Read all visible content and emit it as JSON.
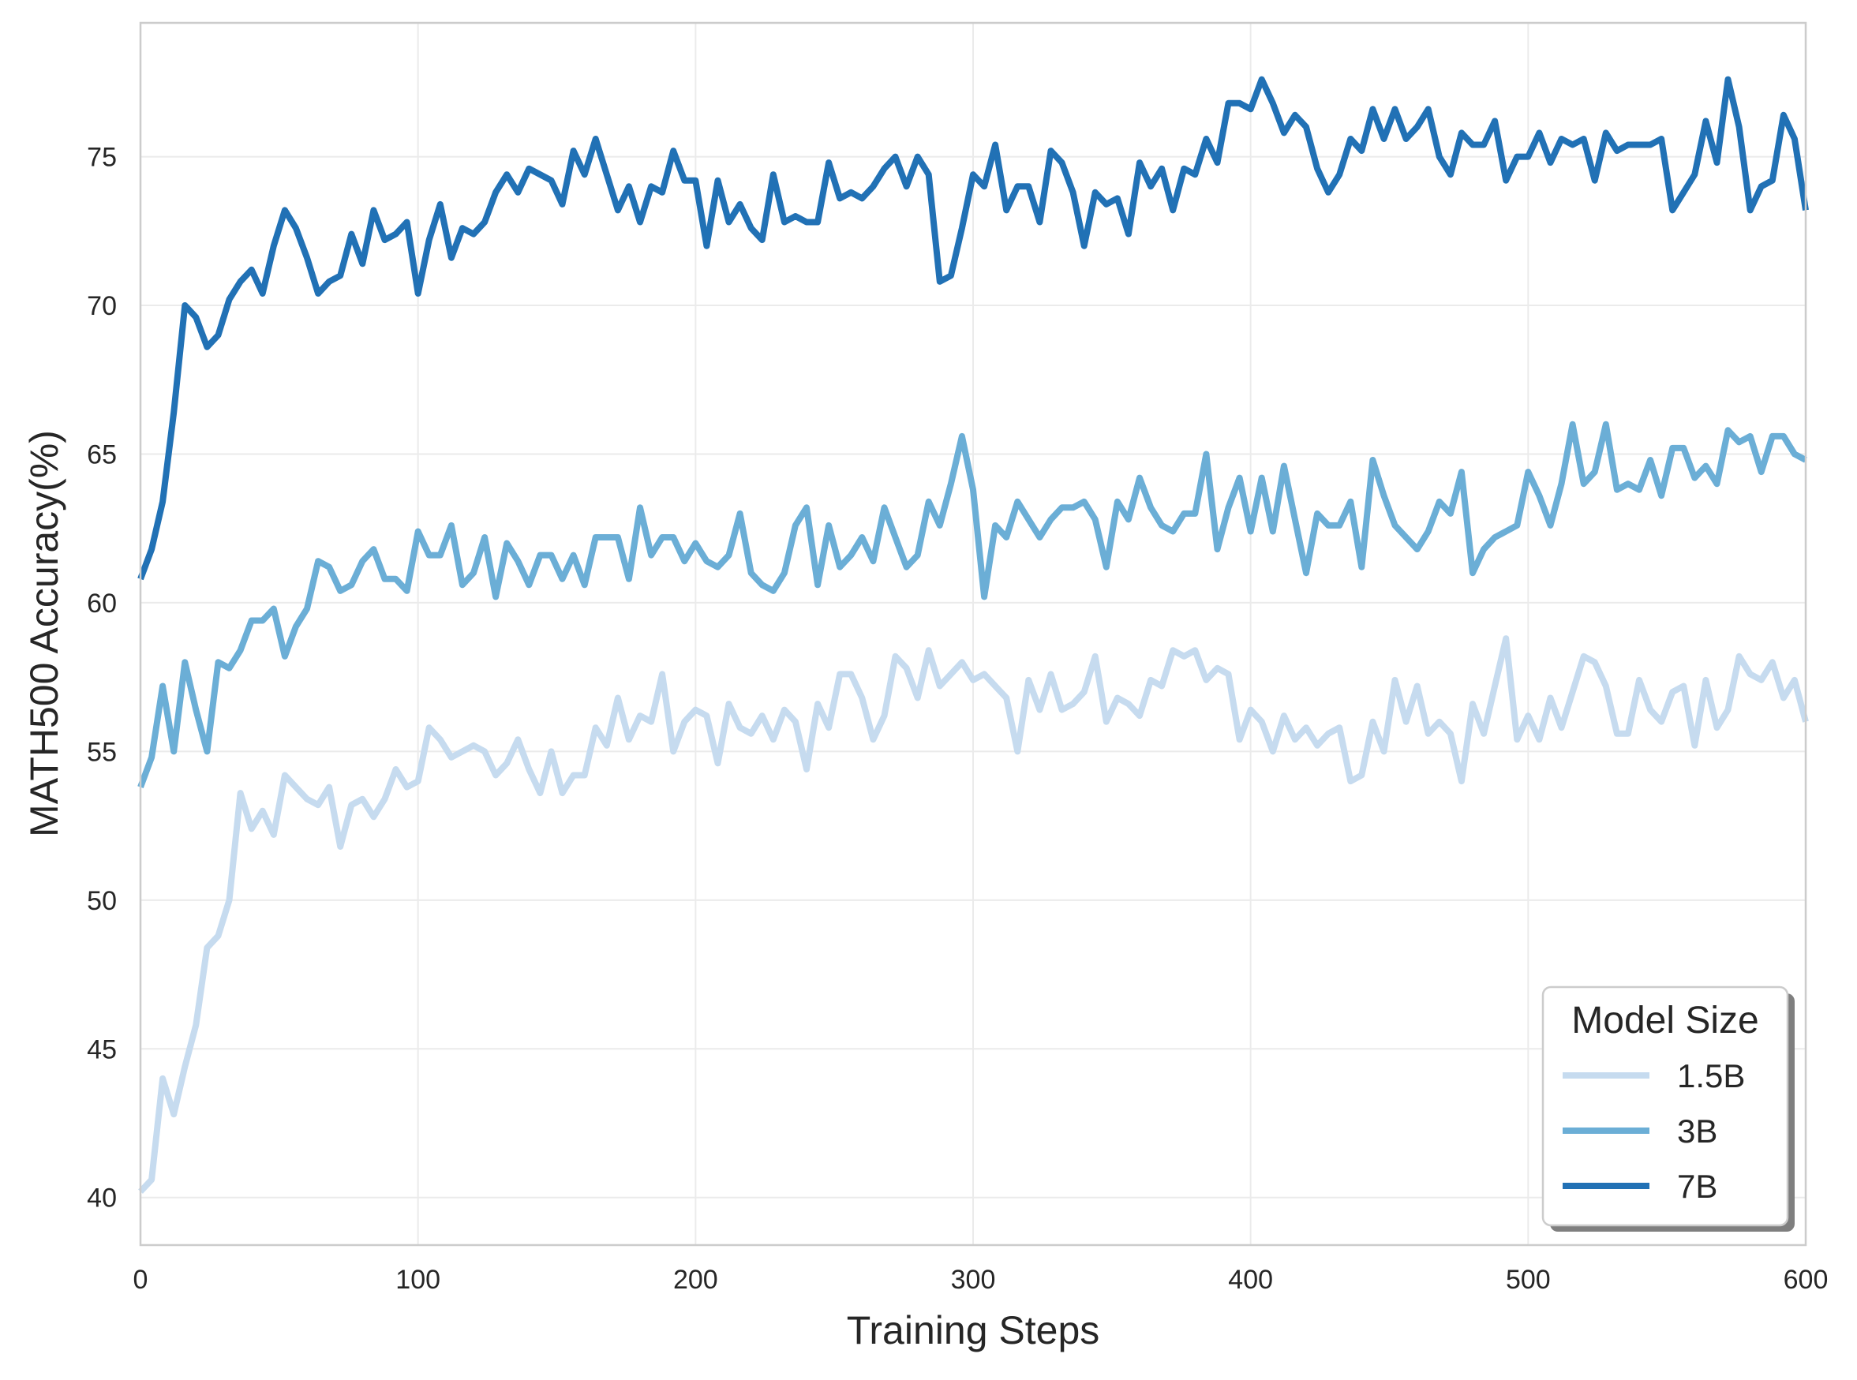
{
  "chart_data": {
    "type": "line",
    "xlabel": "Training Steps",
    "ylabel": "MATH500 Accuracy(%)",
    "xlim": [
      0,
      600
    ],
    "ylim": [
      38.4,
      79.5
    ],
    "xticks": [
      0,
      100,
      200,
      300,
      400,
      500,
      600
    ],
    "yticks": [
      40,
      45,
      50,
      55,
      60,
      65,
      70,
      75
    ],
    "grid": true,
    "legend": {
      "title": "Model Size",
      "placement": "bottom-right"
    },
    "x_step": 4,
    "series": [
      {
        "name": "1.5B",
        "color": "#c6dbef",
        "values": [
          40.2,
          40.6,
          44.0,
          42.8,
          44.4,
          45.8,
          48.4,
          48.8,
          50.0,
          53.6,
          52.4,
          53.0,
          52.2,
          54.2,
          53.8,
          53.4,
          53.2,
          53.8,
          51.8,
          53.2,
          53.4,
          52.8,
          53.4,
          54.4,
          53.8,
          54.0,
          55.8,
          55.4,
          54.8,
          55.0,
          55.2,
          55.0,
          54.2,
          54.6,
          55.4,
          54.4,
          53.6,
          55.0,
          53.6,
          54.2,
          54.2,
          55.8,
          55.2,
          56.8,
          55.4,
          56.2,
          56.0,
          57.6,
          55.0,
          56.0,
          56.4,
          56.2,
          54.6,
          56.6,
          55.8,
          55.6,
          56.2,
          55.4,
          56.4,
          56.0,
          54.4,
          56.6,
          55.8,
          57.6,
          57.6,
          56.8,
          55.4,
          56.2,
          58.2,
          57.8,
          56.8,
          58.4,
          57.2,
          57.6,
          58.0,
          57.4,
          57.6,
          57.2,
          56.8,
          55.0,
          57.4,
          56.4,
          57.6,
          56.4,
          56.6,
          57.0,
          58.2,
          56.0,
          56.8,
          56.6,
          56.2,
          57.4,
          57.2,
          58.4,
          58.2,
          58.4,
          57.4,
          57.8,
          57.6,
          55.4,
          56.4,
          56.0,
          55.0,
          56.2,
          55.4,
          55.8,
          55.2,
          55.6,
          55.8,
          54.0,
          54.2,
          56.0,
          55.0,
          57.4,
          56.0,
          57.2,
          55.6,
          56.0,
          55.6,
          54.0,
          56.6,
          55.6,
          57.2,
          58.8,
          55.4,
          56.2,
          55.4,
          56.8,
          55.8,
          57.0,
          58.2,
          58.0,
          57.2,
          55.6,
          55.6,
          57.4,
          56.4,
          56.0,
          57.0,
          57.2,
          55.2,
          57.4,
          55.8,
          56.4,
          58.2,
          57.6,
          57.4,
          58.0,
          56.8,
          57.4,
          56.0
        ]
      },
      {
        "name": "3B",
        "color": "#6baed6",
        "values": [
          53.8,
          54.8,
          57.2,
          55.0,
          58.0,
          56.4,
          55.0,
          58.0,
          57.8,
          58.4,
          59.4,
          59.4,
          59.8,
          58.2,
          59.2,
          59.8,
          61.4,
          61.2,
          60.4,
          60.6,
          61.4,
          61.8,
          60.8,
          60.8,
          60.4,
          62.4,
          61.6,
          61.6,
          62.6,
          60.6,
          61.0,
          62.2,
          60.2,
          62.0,
          61.4,
          60.6,
          61.6,
          61.6,
          60.8,
          61.6,
          60.6,
          62.2,
          62.2,
          62.2,
          60.8,
          63.2,
          61.6,
          62.2,
          62.2,
          61.4,
          62.0,
          61.4,
          61.2,
          61.6,
          63.0,
          61.0,
          60.6,
          60.4,
          61.0,
          62.6,
          63.2,
          60.6,
          62.6,
          61.2,
          61.6,
          62.2,
          61.4,
          63.2,
          62.2,
          61.2,
          61.6,
          63.4,
          62.6,
          64.0,
          65.6,
          63.8,
          60.2,
          62.6,
          62.2,
          63.4,
          62.8,
          62.2,
          62.8,
          63.2,
          63.2,
          63.4,
          62.8,
          61.2,
          63.4,
          62.8,
          64.2,
          63.2,
          62.6,
          62.4,
          63.0,
          63.0,
          65.0,
          61.8,
          63.2,
          64.2,
          62.4,
          64.2,
          62.4,
          64.6,
          62.8,
          61.0,
          63.0,
          62.6,
          62.6,
          63.4,
          61.2,
          64.8,
          63.6,
          62.6,
          62.2,
          61.8,
          62.4,
          63.4,
          63.0,
          64.4,
          61.0,
          61.8,
          62.2,
          62.4,
          62.6,
          64.4,
          63.6,
          62.6,
          64.0,
          66.0,
          64.0,
          64.4,
          66.0,
          63.8,
          64.0,
          63.8,
          64.8,
          63.6,
          65.2,
          65.2,
          64.2,
          64.6,
          64.0,
          65.8,
          65.4,
          65.6,
          64.4,
          65.6,
          65.6,
          65.0,
          64.8
        ]
      },
      {
        "name": "7B",
        "color": "#2171b5",
        "values": [
          60.8,
          61.8,
          63.4,
          66.4,
          70.0,
          69.6,
          68.6,
          69.0,
          70.2,
          70.8,
          71.2,
          70.4,
          72.0,
          73.2,
          72.6,
          71.6,
          70.4,
          70.8,
          71.0,
          72.4,
          71.4,
          73.2,
          72.2,
          72.4,
          72.8,
          70.4,
          72.2,
          73.4,
          71.6,
          72.6,
          72.4,
          72.8,
          73.8,
          74.4,
          73.8,
          74.6,
          74.4,
          74.2,
          73.4,
          75.2,
          74.4,
          75.6,
          74.4,
          73.2,
          74.0,
          72.8,
          74.0,
          73.8,
          75.2,
          74.2,
          74.2,
          72.0,
          74.2,
          72.8,
          73.4,
          72.6,
          72.2,
          74.4,
          72.8,
          73.0,
          72.8,
          72.8,
          74.8,
          73.6,
          73.8,
          73.6,
          74.0,
          74.6,
          75.0,
          74.0,
          75.0,
          74.4,
          70.8,
          71.0,
          72.6,
          74.4,
          74.0,
          75.4,
          73.2,
          74.0,
          74.0,
          72.8,
          75.2,
          74.8,
          73.8,
          72.0,
          73.8,
          73.4,
          73.6,
          72.4,
          74.8,
          74.0,
          74.6,
          73.2,
          74.6,
          74.4,
          75.6,
          74.8,
          76.8,
          76.8,
          76.6,
          77.6,
          76.8,
          75.8,
          76.4,
          76.0,
          74.6,
          73.8,
          74.4,
          75.6,
          75.2,
          76.6,
          75.6,
          76.6,
          75.6,
          76.0,
          76.6,
          75.0,
          74.4,
          75.8,
          75.4,
          75.4,
          76.2,
          74.2,
          75.0,
          75.0,
          75.8,
          74.8,
          75.6,
          75.4,
          75.6,
          74.2,
          75.8,
          75.2,
          75.4,
          75.4,
          75.4,
          75.6,
          73.2,
          73.8,
          74.4,
          76.2,
          74.8,
          77.6,
          76.0,
          73.2,
          74.0,
          74.2,
          76.4,
          75.6,
          73.2
        ]
      }
    ]
  }
}
